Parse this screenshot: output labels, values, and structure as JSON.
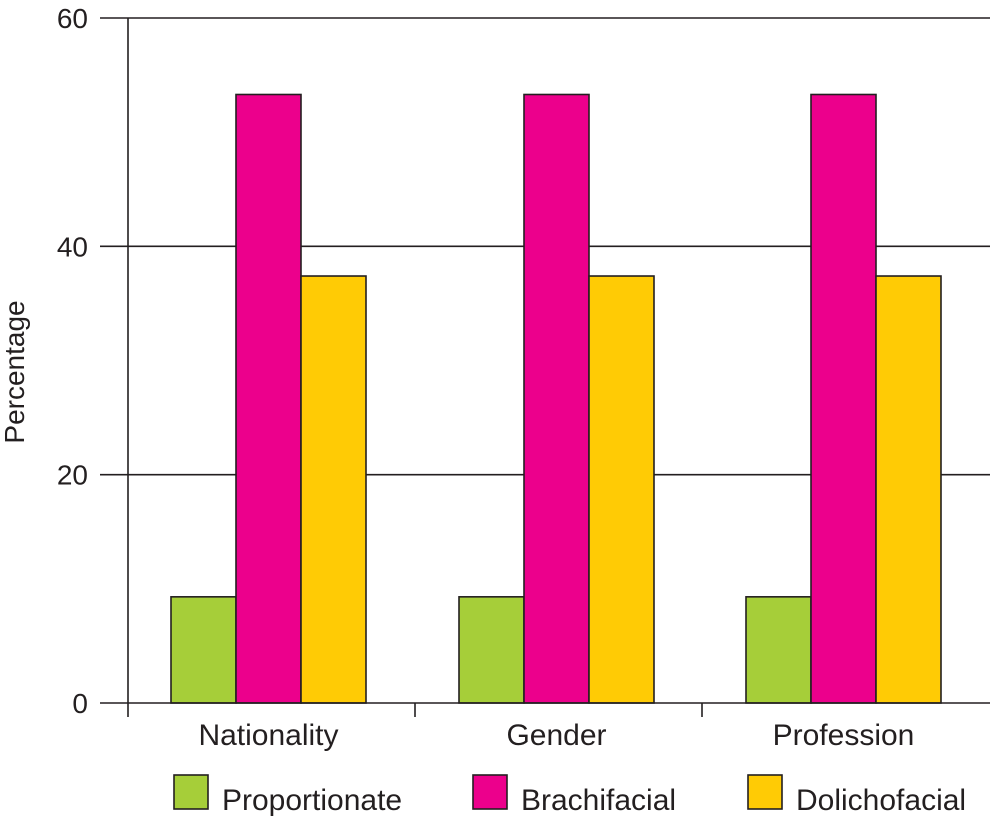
{
  "chart_data": {
    "type": "bar",
    "title": "",
    "xlabel": "",
    "ylabel": "Percentage",
    "ylim": [
      0,
      60
    ],
    "yticks": [
      0,
      20,
      40,
      60
    ],
    "grid": true,
    "legend_position": "bottom",
    "categories": [
      "Nationality",
      "Gender",
      "Profession"
    ],
    "series": [
      {
        "name": "Proportionate",
        "color": "#a6ce39",
        "values": [
          9.3,
          9.3,
          9.3
        ]
      },
      {
        "name": "Brachifacial",
        "color": "#ec008c",
        "values": [
          53.3,
          53.3,
          53.3
        ]
      },
      {
        "name": "Dolichofacial",
        "color": "#ffcb05",
        "values": [
          37.4,
          37.4,
          37.4
        ]
      }
    ]
  }
}
